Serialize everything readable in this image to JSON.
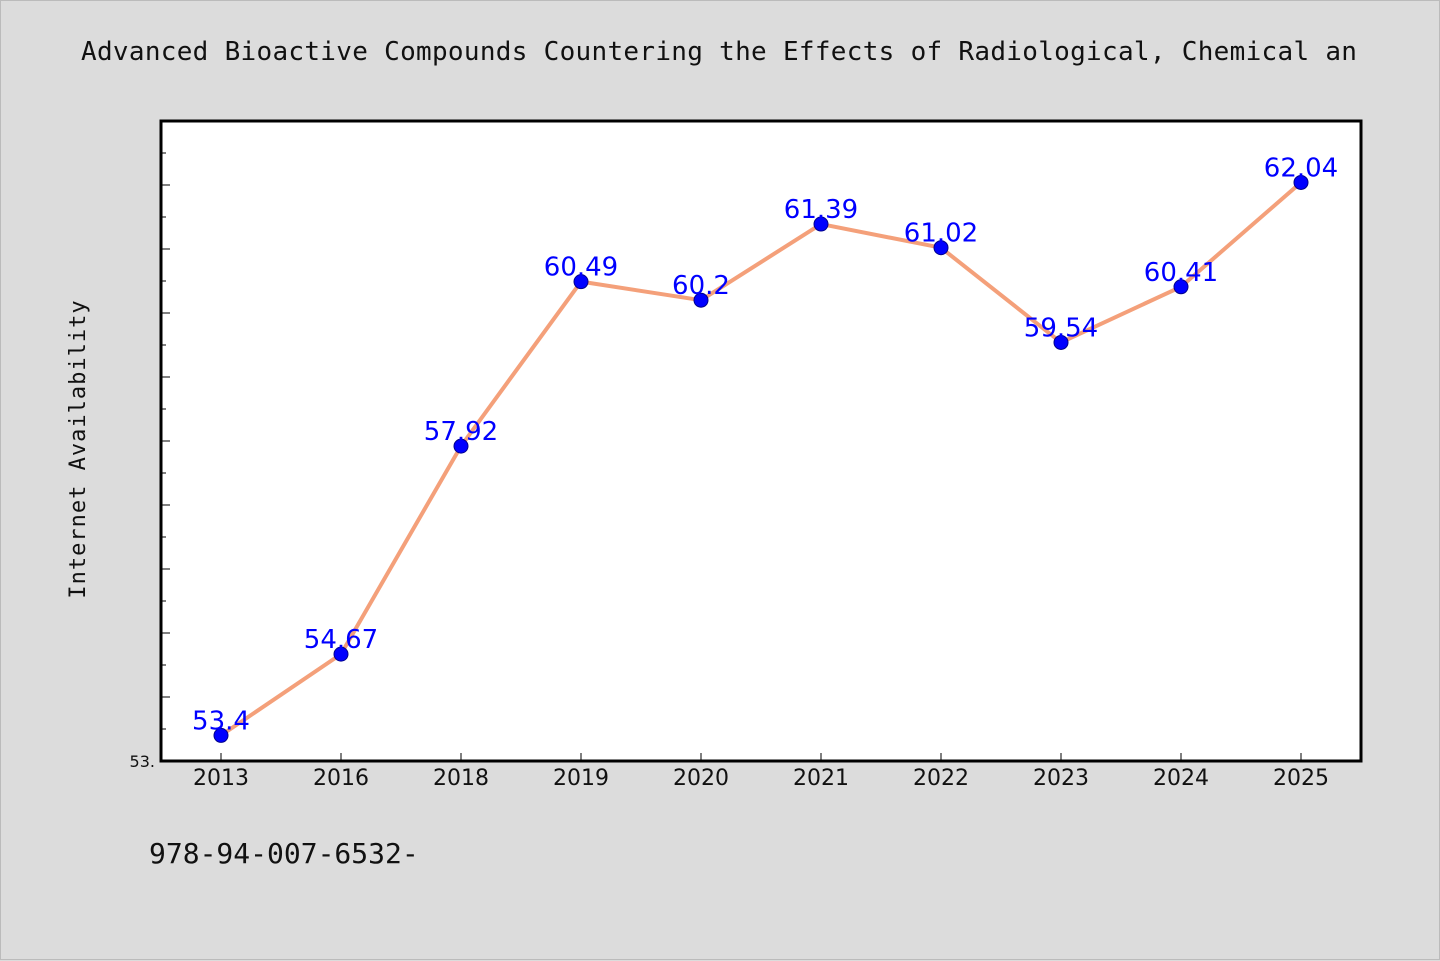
{
  "title": "Advanced Bioactive Compounds Countering the Effects of Radiological, Chemical an",
  "footer": "978-94-007-6532-",
  "chart_data": {
    "type": "line",
    "x": [
      "2013",
      "2016",
      "2018",
      "2019",
      "2020",
      "2021",
      "2022",
      "2023",
      "2024",
      "2025"
    ],
    "series": [
      {
        "values": [
          53.4,
          54.67,
          57.92,
          60.49,
          60.2,
          61.39,
          61.02,
          59.54,
          60.41,
          62.04
        ],
        "labels": [
          "53.4",
          "54.67",
          "57.92",
          "60.49",
          "60.2",
          "61.39",
          "61.02",
          "59.54",
          "60.41",
          "62.04"
        ]
      }
    ],
    "ylabel": "Internet Availability",
    "xlabel": "",
    "ylim": [
      53.0,
      63.0
    ],
    "y_tick_labels": [
      "53."
    ],
    "line_color": "#f4a07a",
    "marker_color": "#0000ff",
    "label_color": "#0000ff",
    "legend": "none",
    "grid": false
  }
}
